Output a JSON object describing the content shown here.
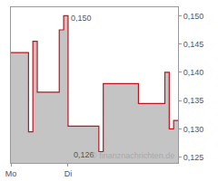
{
  "chart_data": {
    "type": "line",
    "line_style": "step",
    "color": "#c0141e",
    "fill_color": "#c4c4c4",
    "categories": [
      "Mo",
      null,
      null,
      null,
      null,
      null,
      null,
      null,
      null,
      null,
      null,
      null,
      null,
      "Di",
      null,
      null,
      null,
      null,
      null,
      null,
      null,
      null,
      null,
      null,
      null,
      null,
      null,
      null,
      null,
      null,
      null,
      null,
      null,
      null,
      null,
      null,
      null,
      null,
      null
    ],
    "values": [
      0.1435,
      0.1435,
      0.1435,
      0.1435,
      0.1295,
      0.1455,
      0.1365,
      0.1365,
      0.1365,
      0.1365,
      0.1365,
      0.1475,
      0.15,
      0.1305,
      0.1305,
      0.1305,
      0.1305,
      0.1305,
      0.1305,
      0.1305,
      0.126,
      0.138,
      0.138,
      0.138,
      0.138,
      0.138,
      0.138,
      0.138,
      0.138,
      0.1345,
      0.1345,
      0.1345,
      0.1345,
      0.1345,
      0.1345,
      0.14,
      0.13,
      0.1315,
      0.1315
    ],
    "ylim": [
      0.124,
      0.1515
    ],
    "yticks": [
      {
        "value": 0.125,
        "label": "0,125"
      },
      {
        "value": 0.13,
        "label": "0,130"
      },
      {
        "value": 0.135,
        "label": "0,135"
      },
      {
        "value": 0.14,
        "label": "0,140"
      },
      {
        "value": 0.145,
        "label": "0,145"
      },
      {
        "value": 0.15,
        "label": "0,150"
      }
    ],
    "annotations": [
      {
        "value": 0.15,
        "text": "0,150"
      },
      {
        "value": 0.126,
        "text": "0,126"
      }
    ],
    "source": "© finanznachrichten.de",
    "grid": false
  }
}
